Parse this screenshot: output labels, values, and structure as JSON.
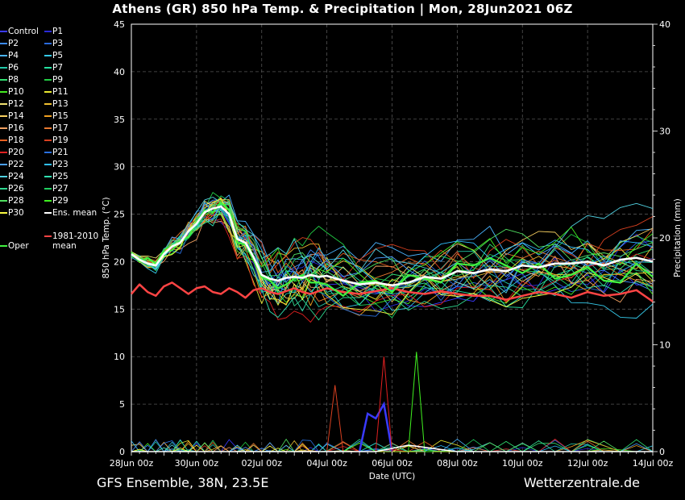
{
  "title": "Athens  (GR)  850 hPa Temp. & Precipitation | Mon, 28Jun2021 06Z",
  "footer_left": "GFS Ensemble, 38N, 23.5E",
  "footer_right": "Wetterzentrale.de",
  "chart_data": {
    "type": "line",
    "xlabel": "Date (UTC)",
    "ylabel": "850 hPa Temp. (°C)",
    "y2label": "Precipitation (mm)",
    "xticks": [
      "28Jun 00z",
      "30Jun 00z",
      "02Jul 00z",
      "04Jul 00z",
      "06Jul 00z",
      "08Jul 00z",
      "10Jul 00z",
      "12Jul 00z",
      "14Jul 00z"
    ],
    "xlim_days": [
      0,
      16
    ],
    "ylim": [
      0,
      45
    ],
    "y2lim": [
      0,
      40
    ],
    "yticks": [
      0,
      5,
      10,
      15,
      20,
      25,
      30,
      35,
      40,
      45
    ],
    "y2ticks": [
      0,
      10,
      20,
      30,
      40
    ],
    "grid": true,
    "legend_position": "left",
    "legend": [
      {
        "name": "Control",
        "color": "#3a3aff"
      },
      {
        "name": "P1",
        "color": "#2a2ad8"
      },
      {
        "name": "P2",
        "color": "#3c8cff"
      },
      {
        "name": "P3",
        "color": "#2a6adc"
      },
      {
        "name": "P4",
        "color": "#4ab4ff"
      },
      {
        "name": "P5",
        "color": "#34c8e8"
      },
      {
        "name": "P6",
        "color": "#22c8a8"
      },
      {
        "name": "P7",
        "color": "#24e0a0"
      },
      {
        "name": "P8",
        "color": "#30e070"
      },
      {
        "name": "P9",
        "color": "#22cc44"
      },
      {
        "name": "P10",
        "color": "#44e822"
      },
      {
        "name": "P11",
        "color": "#e8e830"
      },
      {
        "name": "P12",
        "color": "#f0e070"
      },
      {
        "name": "P13",
        "color": "#f0c030"
      },
      {
        "name": "P14",
        "color": "#f8d060"
      },
      {
        "name": "P15",
        "color": "#f0a020"
      },
      {
        "name": "P16",
        "color": "#f0a060"
      },
      {
        "name": "P17",
        "color": "#e87830"
      },
      {
        "name": "P18",
        "color": "#e86020"
      },
      {
        "name": "P19",
        "color": "#d84020"
      },
      {
        "name": "P20",
        "color": "#e02020"
      },
      {
        "name": "P21",
        "color": "#2a70e0"
      },
      {
        "name": "P22",
        "color": "#4aa0ff"
      },
      {
        "name": "P23",
        "color": "#30c0ff"
      },
      {
        "name": "P24",
        "color": "#50d0e0"
      },
      {
        "name": "P25",
        "color": "#30e0b0"
      },
      {
        "name": "P26",
        "color": "#30d890"
      },
      {
        "name": "P27",
        "color": "#20d060"
      },
      {
        "name": "P28",
        "color": "#50e060"
      },
      {
        "name": "P29",
        "color": "#40f020"
      },
      {
        "name": "P30",
        "color": "#f8f840"
      },
      {
        "name": "Ens. mean",
        "color": "#ffffff"
      },
      {
        "name": "Oper",
        "color": "#40f040"
      },
      {
        "name": "1981-2010 mean",
        "color": "#ff4444"
      }
    ],
    "ens_mean_temp": {
      "x": [
        0,
        0.25,
        0.5,
        0.75,
        1,
        1.25,
        1.5,
        1.75,
        2,
        2.25,
        2.5,
        2.75,
        3,
        3.25,
        3.5,
        3.75,
        4,
        4.25,
        4.5,
        4.75,
        5,
        5.25,
        5.5,
        5.75,
        6,
        6.5,
        7,
        7.5,
        8,
        8.5,
        9,
        9.5,
        10,
        10.5,
        11,
        11.5,
        12,
        12.5,
        13,
        13.5,
        14,
        14.5,
        15,
        15.5,
        16
      ],
      "y": [
        20.8,
        20.2,
        19.8,
        19.6,
        20.8,
        21.6,
        22.0,
        23.2,
        24.0,
        25.2,
        25.6,
        25.8,
        25.0,
        22.4,
        22.0,
        20.5,
        18.6,
        18.2,
        18.0,
        18.3,
        18.4,
        18.3,
        18.6,
        18.4,
        18.5,
        18.0,
        17.6,
        17.8,
        17.5,
        17.8,
        18.4,
        18.2,
        19.0,
        18.8,
        19.2,
        19.0,
        19.6,
        19.4,
        19.8,
        19.8,
        20.0,
        19.6,
        20.2,
        20.4,
        20.0
      ]
    },
    "oper_temp": {
      "x": [
        0,
        0.25,
        0.5,
        0.75,
        1,
        1.25,
        1.5,
        1.75,
        2,
        2.25,
        2.5,
        2.75,
        3,
        3.25,
        3.5,
        3.75,
        4,
        4.25,
        4.5,
        4.75,
        5,
        5.25,
        5.5,
        5.75,
        6,
        6.5,
        7,
        7.5,
        8,
        8.5,
        9,
        9.5,
        10,
        10.5,
        11,
        11.5,
        12,
        12.5,
        13,
        13.5,
        14,
        14.5,
        15,
        15.5,
        16
      ],
      "y": [
        21.0,
        20.0,
        20.4,
        19.8,
        21.0,
        21.2,
        22.2,
        22.6,
        24.2,
        25.4,
        25.2,
        26.2,
        25.4,
        22.0,
        21.8,
        20.2,
        18.4,
        18.0,
        17.2,
        17.6,
        18.2,
        18.6,
        17.8,
        17.8,
        17.6,
        16.4,
        17.8,
        18.0,
        16.8,
        18.6,
        18.2,
        17.8,
        19.8,
        19.6,
        20.4,
        19.6,
        18.8,
        19.8,
        18.2,
        18.6,
        19.4,
        18.0,
        17.8,
        19.8,
        18.4
      ]
    },
    "clim_mean_temp": {
      "x": [
        0,
        0.25,
        0.5,
        0.75,
        1,
        1.25,
        1.5,
        1.75,
        2,
        2.25,
        2.5,
        2.75,
        3,
        3.25,
        3.5,
        3.75,
        4,
        4.25,
        4.5,
        4.75,
        5,
        5.25,
        5.5,
        5.75,
        6,
        6.5,
        7,
        7.5,
        8,
        8.5,
        9,
        9.5,
        10,
        10.5,
        11,
        11.5,
        12,
        12.5,
        13,
        13.5,
        14,
        14.5,
        15,
        15.5,
        16
      ],
      "y": [
        16.6,
        17.6,
        16.8,
        16.4,
        17.4,
        17.8,
        17.2,
        16.6,
        17.2,
        17.4,
        16.8,
        16.6,
        17.2,
        16.8,
        16.2,
        17.0,
        17.2,
        16.8,
        16.6,
        16.9,
        17.2,
        16.8,
        16.6,
        16.9,
        17.2,
        16.8,
        16.6,
        16.9,
        17.2,
        16.8,
        16.6,
        16.9,
        16.6,
        16.4,
        16.4,
        16.0,
        16.4,
        16.8,
        16.6,
        16.2,
        16.8,
        16.4,
        16.6,
        17.0,
        15.8
      ]
    },
    "precip_highlights": [
      {
        "name": "Control",
        "x": [
          7.0,
          7.25,
          7.5,
          7.75,
          8.0
        ],
        "y": [
          0,
          4,
          3.5,
          5,
          0
        ]
      },
      {
        "name": "P29",
        "x": [
          8.5,
          8.75,
          9.0,
          9.25
        ],
        "y": [
          0,
          10.5,
          0,
          0
        ]
      },
      {
        "name": "P20",
        "x": [
          7.5,
          7.75,
          8.0
        ],
        "y": [
          0,
          10,
          0
        ]
      },
      {
        "name": "P19",
        "x": [
          6.0,
          6.25,
          6.5
        ],
        "y": [
          0,
          7,
          0
        ]
      }
    ]
  }
}
